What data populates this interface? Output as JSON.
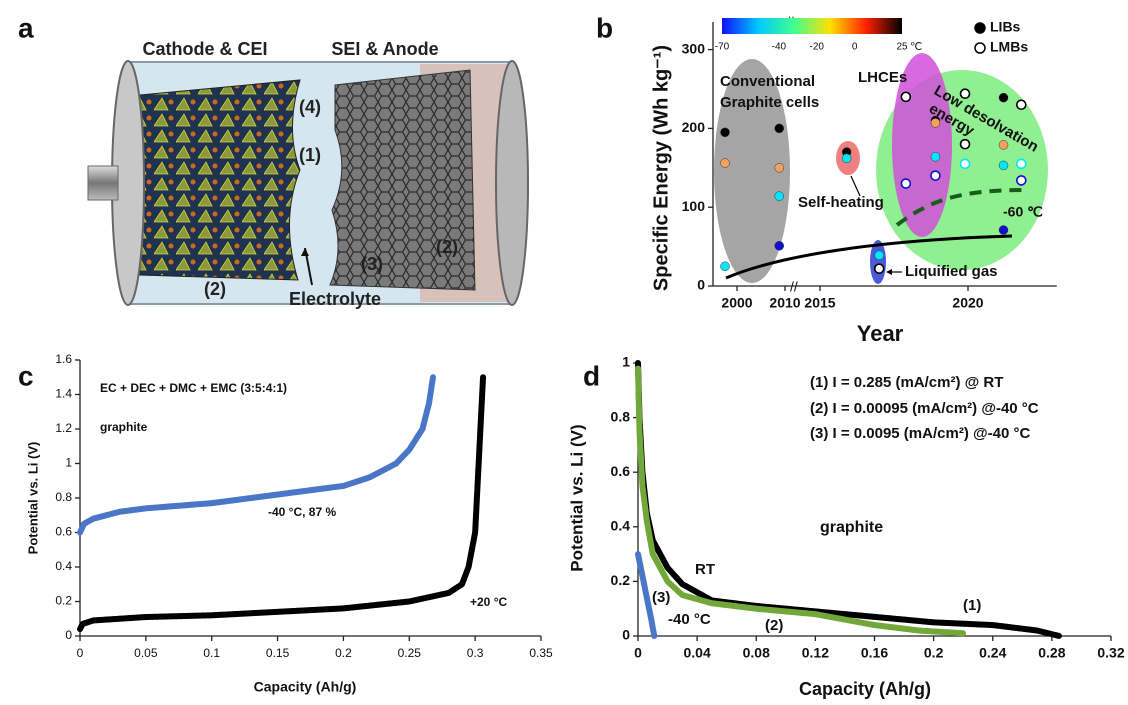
{
  "panel_labels": [
    "a",
    "b",
    "c",
    "d"
  ],
  "illustration": {
    "labels": [
      "Cathode & CEI",
      "SEI & Anode",
      "(4)",
      "(1)",
      "(2)",
      "(3)",
      "(2)",
      "Electrolyte"
    ]
  },
  "chart_data": [
    {
      "type": "scatter",
      "xlabel": "Year",
      "ylabel": "Specific Energy (Wh kg⁻¹)",
      "xlim": [
        1995,
        2023
      ],
      "xticks": [
        2000,
        2010,
        2015,
        2020
      ],
      "ylim": [
        0,
        335
      ],
      "yticks": [
        0,
        100,
        200,
        300
      ],
      "colorbar": {
        "lim": [
          -70,
          25
        ],
        "ticks": [
          -70,
          -40,
          -20,
          0,
          25
        ],
        "unit": "℃",
        "colors": [
          "#1010ff",
          "#00c8ff",
          "#40ff90",
          "#ffe000",
          "#ff2000",
          "#000000"
        ]
      },
      "legend": "top right",
      "annotations": [
        "Conventional",
        "Graphite cells",
        "LHCEs",
        "Low desolvation",
        "energy",
        "Self-heating",
        "Liquified gas",
        "-60 ℃"
      ],
      "series": [
        {
          "name": "LIBs",
          "marker": "filled",
          "x": [
            1997.5,
            1997.5,
            1997.5,
            2008.8,
            2008.8,
            2008.8,
            2008.8,
            2015.9,
            2015.9,
            2017,
            2018.9,
            2018.9,
            2018.9,
            2021.2,
            2021.2,
            2021.2,
            2021.2
          ],
          "values": [
            195,
            156,
            25,
            200,
            150,
            114,
            51,
            170,
            162,
            39,
            210,
            207,
            164,
            239,
            179,
            153,
            71
          ],
          "colors": [
            "#000000",
            "#f4a060",
            "#00e8ff",
            "#000000",
            "#f4a060",
            "#00e8ff",
            "#1010d0",
            "#000000",
            "#00e8ff",
            "#00e8ff",
            "#000000",
            "#f4a060",
            "#00e8ff",
            "#000000",
            "#f4a060",
            "#00e8ff",
            "#1010d0"
          ]
        },
        {
          "name": "LMBs",
          "marker": "open",
          "x": [
            2017,
            2017.9,
            2017.9,
            2018.9,
            2019.9,
            2019.9,
            2019.9,
            2021.8,
            2021.8,
            2021.8
          ],
          "values": [
            22,
            240,
            130,
            140,
            244,
            180,
            155,
            230,
            155,
            134
          ],
          "colors": [
            "#000000",
            "#000000",
            "#1010d0",
            "#1010d0",
            "#000000",
            "#000000",
            "#00e8ff",
            "#000000",
            "#00e8ff",
            "#1010d0"
          ]
        }
      ]
    },
    {
      "type": "line",
      "xlabel": "Capacity (Ah/g)",
      "ylabel": "Potential vs. Li (V)",
      "xlim": [
        0,
        0.35
      ],
      "xticks": [
        0,
        0.05,
        0.1,
        0.15,
        0.2,
        0.25,
        0.3,
        0.35
      ],
      "ylim": [
        0,
        1.6
      ],
      "yticks": [
        0,
        0.2,
        0.4,
        0.6,
        0.8,
        1,
        1.2,
        1.4,
        1.6
      ],
      "annotations": [
        "EC + DEC + DMC + EMC    (3:5:4:1)",
        "graphite"
      ],
      "series": [
        {
          "name": "-40 °C, 87 %",
          "color": "#4a76c8",
          "x": [
            0,
            0.003,
            0.01,
            0.03,
            0.05,
            0.1,
            0.15,
            0.2,
            0.22,
            0.24,
            0.25,
            0.26,
            0.265,
            0.268
          ],
          "values": [
            0.6,
            0.65,
            0.68,
            0.72,
            0.74,
            0.77,
            0.82,
            0.87,
            0.92,
            1.0,
            1.08,
            1.2,
            1.35,
            1.5
          ]
        },
        {
          "name": "+20 °C",
          "color": "#000000",
          "x": [
            0,
            0.002,
            0.01,
            0.05,
            0.1,
            0.15,
            0.2,
            0.25,
            0.28,
            0.29,
            0.295,
            0.3,
            0.302,
            0.304,
            0.306
          ],
          "values": [
            0.04,
            0.07,
            0.09,
            0.11,
            0.12,
            0.14,
            0.16,
            0.2,
            0.25,
            0.3,
            0.4,
            0.6,
            0.9,
            1.2,
            1.5
          ]
        }
      ]
    },
    {
      "type": "line",
      "xlabel": "Capacity (Ah/g)",
      "ylabel": "Potential vs. Li (V)",
      "xlim": [
        0,
        0.32
      ],
      "xticks": [
        0,
        0.04,
        0.08,
        0.12,
        0.16,
        0.2,
        0.24,
        0.28,
        0.32
      ],
      "ylim": [
        0,
        1
      ],
      "yticks": [
        0,
        0.2,
        0.4,
        0.6,
        0.8,
        1
      ],
      "annotations": [
        "(1) I = 0.285 (mA/cm²) @ RT",
        "(2) I = 0.00095 (mA/cm²) @-40 °C",
        "(3) I = 0.0095 (mA/cm²) @-40 °C",
        "graphite",
        "RT",
        "-40 °C"
      ],
      "series": [
        {
          "name": "(1)",
          "color": "#000000",
          "x": [
            0,
            0.001,
            0.003,
            0.006,
            0.01,
            0.02,
            0.03,
            0.05,
            0.08,
            0.12,
            0.16,
            0.2,
            0.24,
            0.27,
            0.285
          ],
          "values": [
            1,
            0.8,
            0.6,
            0.45,
            0.35,
            0.25,
            0.19,
            0.13,
            0.11,
            0.09,
            0.07,
            0.05,
            0.04,
            0.02,
            0
          ]
        },
        {
          "name": "(2)",
          "color": "#72a83a",
          "x": [
            0,
            0.001,
            0.003,
            0.006,
            0.01,
            0.02,
            0.03,
            0.05,
            0.08,
            0.12,
            0.16,
            0.19,
            0.22
          ],
          "values": [
            0.98,
            0.75,
            0.55,
            0.42,
            0.3,
            0.2,
            0.15,
            0.12,
            0.1,
            0.08,
            0.04,
            0.02,
            0.01
          ]
        },
        {
          "name": "(3)",
          "color": "#4a76c8",
          "x": [
            0,
            0.003,
            0.006,
            0.009,
            0.011
          ],
          "values": [
            0.3,
            0.22,
            0.14,
            0.06,
            0
          ]
        }
      ]
    }
  ]
}
